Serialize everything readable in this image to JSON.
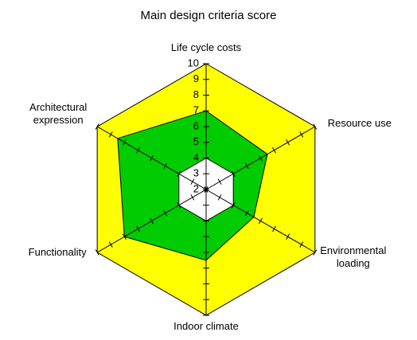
{
  "chart_data": {
    "type": "radar",
    "title": "Main design criteria score",
    "categories": [
      "Life cycle costs",
      "Resource use",
      "Environmental loading",
      "Indoor climate",
      "Functionality",
      "Architectural expression"
    ],
    "series": [
      {
        "color": "#ffff00",
        "values": [
          10,
          10,
          10,
          10,
          10,
          10
        ]
      },
      {
        "color": "#00cc00",
        "values": [
          7,
          6.5,
          5.5,
          6.5,
          8,
          8.5
        ]
      },
      {
        "color": "#ffffff",
        "values": [
          4,
          4,
          4,
          4,
          4,
          4
        ]
      }
    ],
    "rlim": [
      2,
      10
    ],
    "rticks": [
      2,
      3,
      4,
      5,
      6,
      7,
      8,
      9,
      10
    ]
  }
}
